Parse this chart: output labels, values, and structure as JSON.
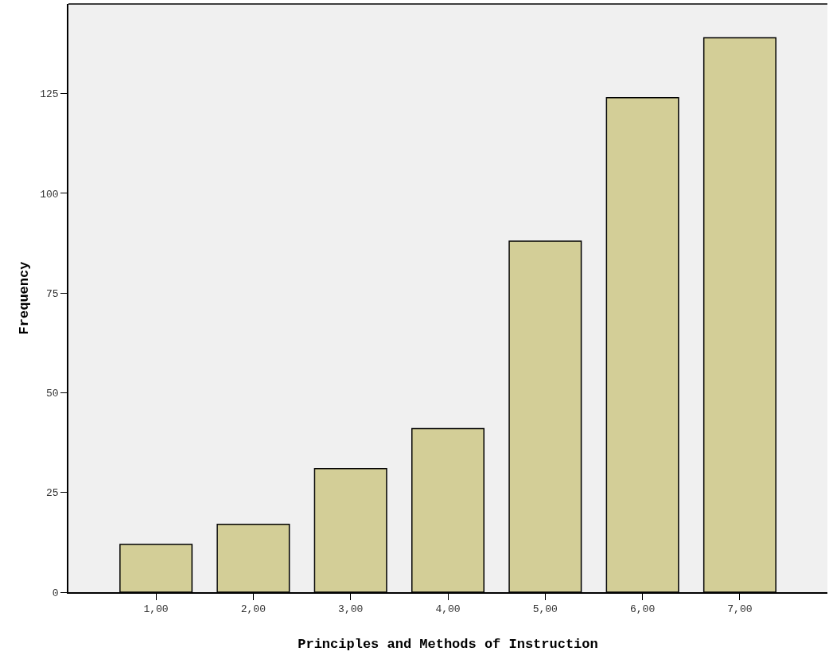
{
  "chart_data": {
    "type": "bar",
    "xlabel": "Principles and Methods of Instruction",
    "ylabel": "Frequency",
    "categories": [
      "1,00",
      "2,00",
      "3,00",
      "4,00",
      "5,00",
      "6,00",
      "7,00"
    ],
    "values": [
      12,
      17,
      31,
      41,
      88,
      124,
      139
    ],
    "color": "#d3ce97",
    "ylim": [
      0,
      147.5
    ],
    "yticks": [
      0,
      25,
      50,
      75,
      100,
      125
    ],
    "grid": false
  }
}
